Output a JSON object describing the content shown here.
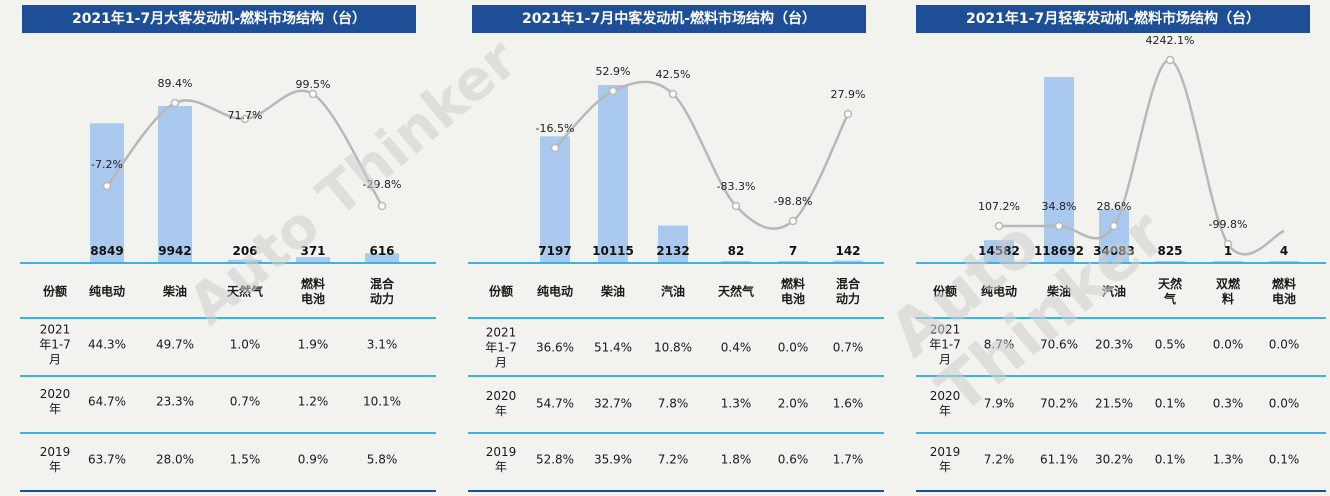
{
  "colors": {
    "title_bg": "#1e4f96",
    "bar": "#a9c9ee",
    "line": "#b8b8b8",
    "divider": "#3ab4e6"
  },
  "panels": [
    {
      "title": "2021年1-7月大客发动机-燃料市场结构（台）",
      "chart_data": {
        "type": "bar",
        "categories": [
          "纯电动",
          "柴油",
          "天然气",
          "燃料电池",
          "混合动力"
        ],
        "values": [
          8849,
          9942,
          206,
          371,
          616
        ],
        "value_labels": [
          "8849",
          "9942",
          "206",
          "371",
          "616"
        ],
        "growth": [
          -7.2,
          89.4,
          71.7,
          99.5,
          -29.8
        ],
        "growth_labels": [
          "-7.2%",
          "89.4%",
          "71.7%",
          "99.5%",
          "-29.8%"
        ]
      },
      "table": {
        "header": [
          "份额",
          "纯电动",
          "柴油",
          "天然气",
          "燃料\n电池",
          "混合\n动力"
        ],
        "rows": [
          [
            "2021\n年1-7\n月",
            "44.3%",
            "49.7%",
            "1.0%",
            "1.9%",
            "3.1%"
          ],
          [
            "2020\n年",
            "64.7%",
            "23.3%",
            "0.7%",
            "1.2%",
            "10.1%"
          ],
          [
            "2019\n年",
            "63.7%",
            "28.0%",
            "1.5%",
            "0.9%",
            "5.8%"
          ]
        ]
      }
    },
    {
      "title": "2021年1-7月中客发动机-燃料市场结构（台）",
      "chart_data": {
        "type": "bar",
        "categories": [
          "纯电动",
          "柴油",
          "汽油",
          "天然气",
          "燃料电池",
          "混合动力"
        ],
        "values": [
          7197,
          10115,
          2132,
          82,
          7,
          142
        ],
        "value_labels": [
          "7197",
          "10115",
          "2132",
          "82",
          "7",
          "142"
        ],
        "growth": [
          -16.5,
          52.9,
          42.5,
          -83.3,
          -98.8,
          27.9
        ],
        "growth_labels": [
          "-16.5%",
          "52.9%",
          "42.5%",
          "-83.3%",
          "-98.8%",
          "27.9%"
        ]
      },
      "table": {
        "header": [
          "份额",
          "纯电动",
          "柴油",
          "汽油",
          "天然气",
          "燃料\n电池",
          "混合\n动力"
        ],
        "rows": [
          [
            "2021\n年1-7\n月",
            "36.6%",
            "51.4%",
            "10.8%",
            "0.4%",
            "0.0%",
            "0.7%"
          ],
          [
            "2020\n年",
            "54.7%",
            "32.7%",
            "7.8%",
            "1.3%",
            "2.0%",
            "1.6%"
          ],
          [
            "2019\n年",
            "52.8%",
            "35.9%",
            "7.2%",
            "1.8%",
            "0.6%",
            "1.7%"
          ]
        ]
      }
    },
    {
      "title": "2021年1-7月轻客发动机-燃料市场结构（台）",
      "chart_data": {
        "type": "bar",
        "categories": [
          "纯电动",
          "柴油",
          "汽油",
          "天然气",
          "双燃料",
          "燃料电池"
        ],
        "values": [
          14582,
          118692,
          34083,
          825,
          1,
          4
        ],
        "value_labels": [
          "14582",
          "118692",
          "34083",
          "825",
          "1",
          "4"
        ],
        "growth": [
          107.2,
          34.8,
          28.6,
          4242.1,
          -99.8,
          null
        ],
        "growth_labels": [
          "107.2%",
          "34.8%",
          "28.6%",
          "4242.1%",
          "-99.8%",
          ""
        ]
      },
      "table": {
        "header": [
          "份额",
          "纯电动",
          "柴油",
          "汽油",
          "天然\n气",
          "双燃\n料",
          "燃料\n电池"
        ],
        "rows": [
          [
            "2021\n年1-7\n月",
            "8.7%",
            "70.6%",
            "20.3%",
            "0.5%",
            "0.0%",
            "0.0%"
          ],
          [
            "2020\n年",
            "7.9%",
            "70.2%",
            "21.5%",
            "0.1%",
            "0.3%",
            "0.0%"
          ],
          [
            "2019\n年",
            "7.2%",
            "61.1%",
            "30.2%",
            "0.1%",
            "1.3%",
            "0.1%"
          ]
        ]
      }
    }
  ],
  "watermark": "Auto Thinker"
}
